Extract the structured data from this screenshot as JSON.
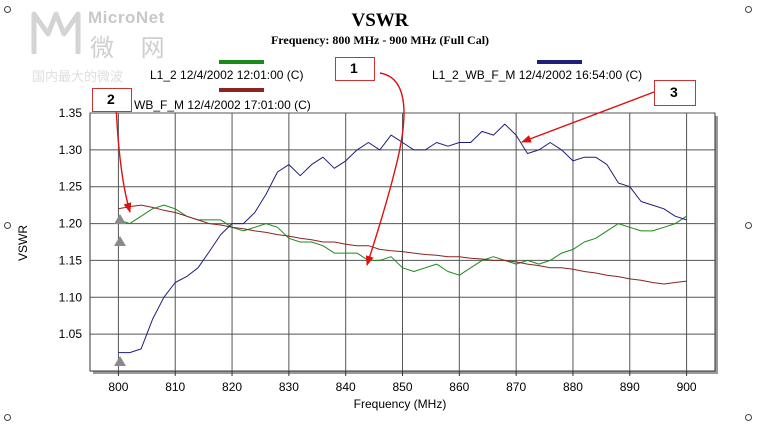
{
  "watermark": {
    "brand": "MicroNet",
    "chinese": "微 网",
    "tagline": "国内最大的微波"
  },
  "callouts": [
    "1",
    "2",
    "3"
  ],
  "chart_data": {
    "type": "line",
    "title": "VSWR",
    "subtitle": "Frequency: 800 MHz - 900 MHz (Full Cal)",
    "xlabel": "Frequency (MHz)",
    "ylabel": "VSWR",
    "xlim": [
      795,
      905
    ],
    "ylim": [
      1.0,
      1.35
    ],
    "xticks": [
      800,
      810,
      820,
      830,
      840,
      850,
      860,
      870,
      880,
      890,
      900
    ],
    "yticks": [
      1.05,
      1.1,
      1.15,
      1.2,
      1.25,
      1.3,
      1.35
    ],
    "grid": true,
    "legend_position": "top",
    "series": [
      {
        "name": "L1_2 12/4/2002 12:01:00 (C)",
        "color": "#1a8a1a",
        "x": [
          800,
          802,
          804,
          806,
          808,
          810,
          812,
          814,
          816,
          818,
          820,
          822,
          824,
          826,
          828,
          830,
          832,
          834,
          836,
          838,
          840,
          842,
          844,
          846,
          848,
          850,
          852,
          854,
          856,
          858,
          860,
          862,
          864,
          866,
          868,
          870,
          872,
          874,
          876,
          878,
          880,
          882,
          884,
          886,
          888,
          890,
          892,
          894,
          896,
          898,
          900
        ],
        "y": [
          1.205,
          1.2,
          1.21,
          1.22,
          1.225,
          1.22,
          1.21,
          1.205,
          1.205,
          1.205,
          1.195,
          1.19,
          1.195,
          1.2,
          1.195,
          1.18,
          1.175,
          1.175,
          1.17,
          1.16,
          1.16,
          1.16,
          1.15,
          1.15,
          1.155,
          1.14,
          1.135,
          1.14,
          1.145,
          1.135,
          1.13,
          1.14,
          1.15,
          1.155,
          1.15,
          1.145,
          1.15,
          1.145,
          1.15,
          1.16,
          1.165,
          1.175,
          1.18,
          1.19,
          1.2,
          1.195,
          1.19,
          1.19,
          1.195,
          1.2,
          1.21
        ]
      },
      {
        "name": "WB_F_M 12/4/2002 17:01:00 (C)",
        "color": "#8b2323",
        "x": [
          800,
          802,
          804,
          806,
          808,
          810,
          812,
          814,
          816,
          818,
          820,
          822,
          824,
          826,
          828,
          830,
          832,
          834,
          836,
          838,
          840,
          842,
          844,
          846,
          848,
          850,
          852,
          854,
          856,
          858,
          860,
          862,
          864,
          866,
          868,
          870,
          872,
          874,
          876,
          878,
          880,
          882,
          884,
          886,
          888,
          890,
          892,
          894,
          896,
          898,
          900
        ],
        "y": [
          1.22,
          1.223,
          1.225,
          1.222,
          1.218,
          1.215,
          1.21,
          1.205,
          1.2,
          1.198,
          1.195,
          1.193,
          1.19,
          1.188,
          1.185,
          1.183,
          1.18,
          1.178,
          1.175,
          1.175,
          1.172,
          1.17,
          1.17,
          1.165,
          1.163,
          1.162,
          1.16,
          1.158,
          1.157,
          1.155,
          1.155,
          1.153,
          1.152,
          1.15,
          1.15,
          1.148,
          1.145,
          1.143,
          1.14,
          1.14,
          1.138,
          1.135,
          1.133,
          1.13,
          1.128,
          1.125,
          1.123,
          1.12,
          1.118,
          1.12,
          1.122
        ]
      },
      {
        "name": "L1_2_WB_F_M 12/4/2002 16:54:00 (C)",
        "color": "#1f1f7a",
        "x": [
          800,
          802,
          804,
          806,
          808,
          810,
          812,
          814,
          816,
          818,
          820,
          822,
          824,
          826,
          828,
          830,
          832,
          834,
          836,
          838,
          840,
          842,
          844,
          846,
          848,
          850,
          852,
          854,
          856,
          858,
          860,
          862,
          864,
          866,
          868,
          870,
          872,
          874,
          876,
          878,
          880,
          882,
          884,
          886,
          888,
          890,
          892,
          894,
          896,
          898,
          900
        ],
        "y": [
          1.025,
          1.025,
          1.03,
          1.07,
          1.1,
          1.12,
          1.128,
          1.14,
          1.162,
          1.185,
          1.2,
          1.2,
          1.215,
          1.24,
          1.27,
          1.28,
          1.265,
          1.28,
          1.29,
          1.275,
          1.285,
          1.3,
          1.31,
          1.3,
          1.32,
          1.31,
          1.3,
          1.3,
          1.31,
          1.305,
          1.31,
          1.31,
          1.325,
          1.32,
          1.335,
          1.32,
          1.295,
          1.3,
          1.31,
          1.3,
          1.285,
          1.29,
          1.29,
          1.28,
          1.255,
          1.25,
          1.23,
          1.225,
          1.22,
          1.21,
          1.205
        ]
      }
    ]
  }
}
